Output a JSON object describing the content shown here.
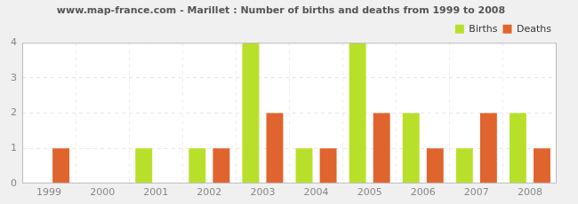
{
  "chart_data": {
    "type": "bar",
    "title": "www.map-france.com - Marillet : Number of births and deaths from 1999 to 2008",
    "categories": [
      "1999",
      "2000",
      "2001",
      "2002",
      "2003",
      "2004",
      "2005",
      "2006",
      "2007",
      "2008"
    ],
    "series": [
      {
        "name": "Births",
        "color": "#b8e02a",
        "values": [
          0,
          0,
          1,
          1,
          4,
          1,
          4,
          2,
          1,
          2
        ]
      },
      {
        "name": "Deaths",
        "color": "#e0642e",
        "values": [
          1,
          0,
          0,
          1,
          2,
          1,
          2,
          1,
          2,
          1
        ]
      }
    ],
    "ylim": [
      0,
      4
    ],
    "yticks": [
      0,
      1,
      2,
      3,
      4
    ],
    "grid": true,
    "legend": "top-right"
  }
}
